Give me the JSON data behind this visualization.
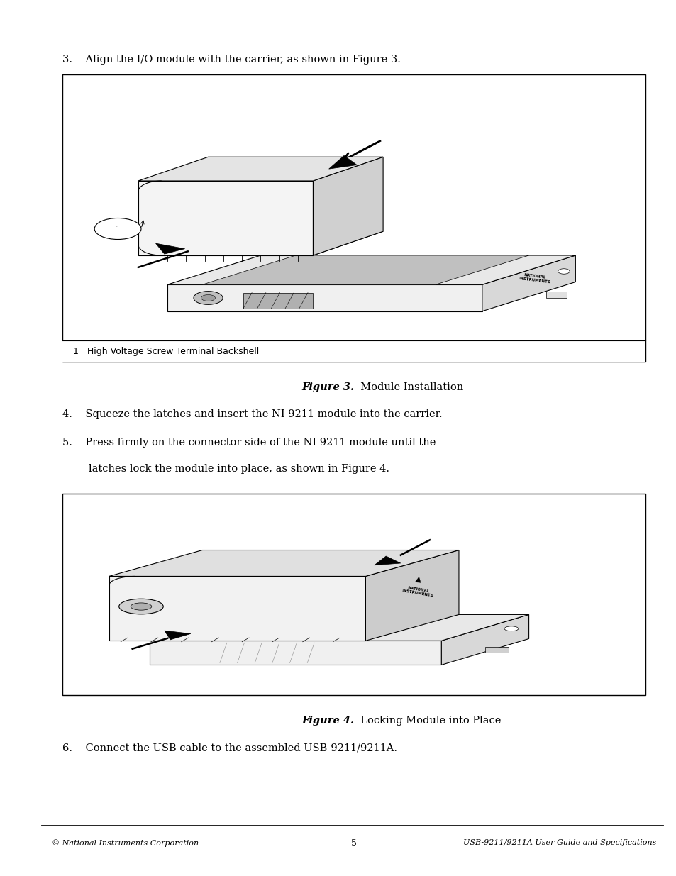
{
  "bg_color": "#ffffff",
  "page_width": 9.54,
  "page_height": 12.35,
  "dpi": 100,
  "text_color": "#000000",
  "body_font_size": 10.5,
  "body_font": "DejaVu Serif",
  "step3_text": "3.    Align the I/O module with the carrier, as shown in Figure 3.",
  "step4_text": "4.    Squeeze the latches and insert the NI 9211 module into the carrier.",
  "step5_text_line1": "5.    Press firmly on the connector side of the NI 9211 module until the",
  "step5_text_line2": "        latches lock the module into place, as shown in Figure 4.",
  "step6_text": "6.    Connect the USB cable to the assembled USB-9211/9211A.",
  "fig3_label": "Figure 3.",
  "fig3_title": "  Module Installation",
  "fig4_label": "Figure 4.",
  "fig4_title": "  Locking Module into Place",
  "fig3_legend_num": "1",
  "fig3_legend_text": "   High Voltage Screw Terminal Backshell",
  "footer_left": "© National Instruments Corporation",
  "footer_center": "5",
  "footer_right": "USB-9211/9211A User Guide and Specifications"
}
